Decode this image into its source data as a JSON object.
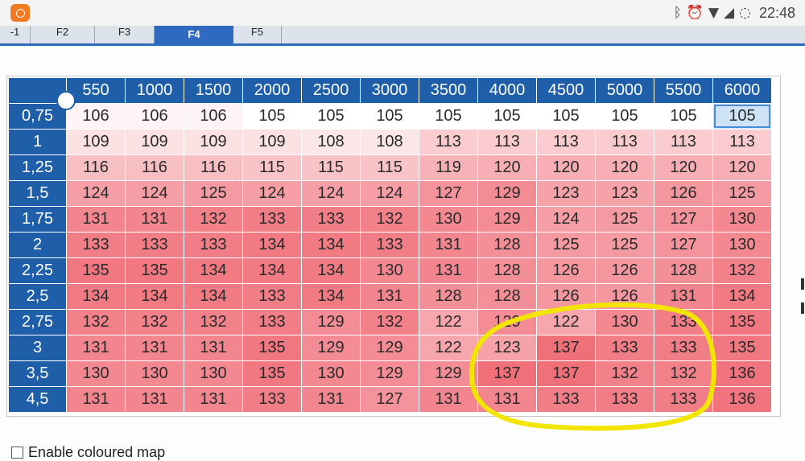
{
  "status_bar": {
    "time": "22:48",
    "icons": [
      "bluetooth-icon",
      "alarm-icon",
      "wifi-icon",
      "signal-icon",
      "sync-icon"
    ]
  },
  "tabs": [
    {
      "label": "-1"
    },
    {
      "label": "F2"
    },
    {
      "label": "F3"
    },
    {
      "label": "F4",
      "active": true
    },
    {
      "label": "F5"
    }
  ],
  "map": {
    "column_headers": [
      "550",
      "1000",
      "1500",
      "2000",
      "2500",
      "3000",
      "3500",
      "4000",
      "4500",
      "5000",
      "5500",
      "6000"
    ],
    "rows": [
      {
        "label": "0,75",
        "values": [
          106,
          106,
          106,
          105,
          105,
          105,
          105,
          105,
          105,
          105,
          105,
          105
        ]
      },
      {
        "label": "1",
        "values": [
          109,
          109,
          109,
          109,
          108,
          108,
          113,
          113,
          113,
          113,
          113,
          113
        ]
      },
      {
        "label": "1,25",
        "values": [
          116,
          116,
          116,
          115,
          115,
          115,
          119,
          120,
          120,
          120,
          120,
          120
        ]
      },
      {
        "label": "1,5",
        "values": [
          124,
          124,
          125,
          124,
          124,
          124,
          127,
          129,
          123,
          123,
          126,
          125
        ]
      },
      {
        "label": "1,75",
        "values": [
          131,
          131,
          132,
          133,
          133,
          132,
          130,
          129,
          124,
          125,
          127,
          130
        ]
      },
      {
        "label": "2",
        "values": [
          133,
          133,
          133,
          134,
          134,
          133,
          131,
          128,
          125,
          125,
          127,
          130
        ]
      },
      {
        "label": "2,25",
        "values": [
          135,
          135,
          134,
          134,
          134,
          130,
          131,
          128,
          126,
          126,
          128,
          132
        ]
      },
      {
        "label": "2,5",
        "values": [
          134,
          134,
          134,
          133,
          134,
          131,
          128,
          128,
          126,
          126,
          131,
          134
        ]
      },
      {
        "label": "2,75",
        "values": [
          132,
          132,
          132,
          133,
          129,
          132,
          122,
          129,
          122,
          130,
          133,
          135
        ]
      },
      {
        "label": "3",
        "values": [
          131,
          131,
          131,
          135,
          129,
          129,
          122,
          123,
          137,
          133,
          133,
          135
        ]
      },
      {
        "label": "3,5",
        "values": [
          130,
          130,
          130,
          135,
          130,
          129,
          129,
          137,
          137,
          132,
          132,
          136
        ]
      },
      {
        "label": "4,5",
        "values": [
          131,
          131,
          131,
          133,
          131,
          127,
          131,
          131,
          133,
          133,
          133,
          136
        ]
      }
    ],
    "selected_cell": {
      "row": 0,
      "col": 11
    },
    "colors": {
      "header_bg": "#1f5faa",
      "low": "#ffffff",
      "high": "#f0707a",
      "selection": "#4a8ad6",
      "annotation": "#f2e600"
    }
  },
  "footer": {
    "checkbox_label": "Enable coloured map",
    "checkbox_checked": false
  }
}
